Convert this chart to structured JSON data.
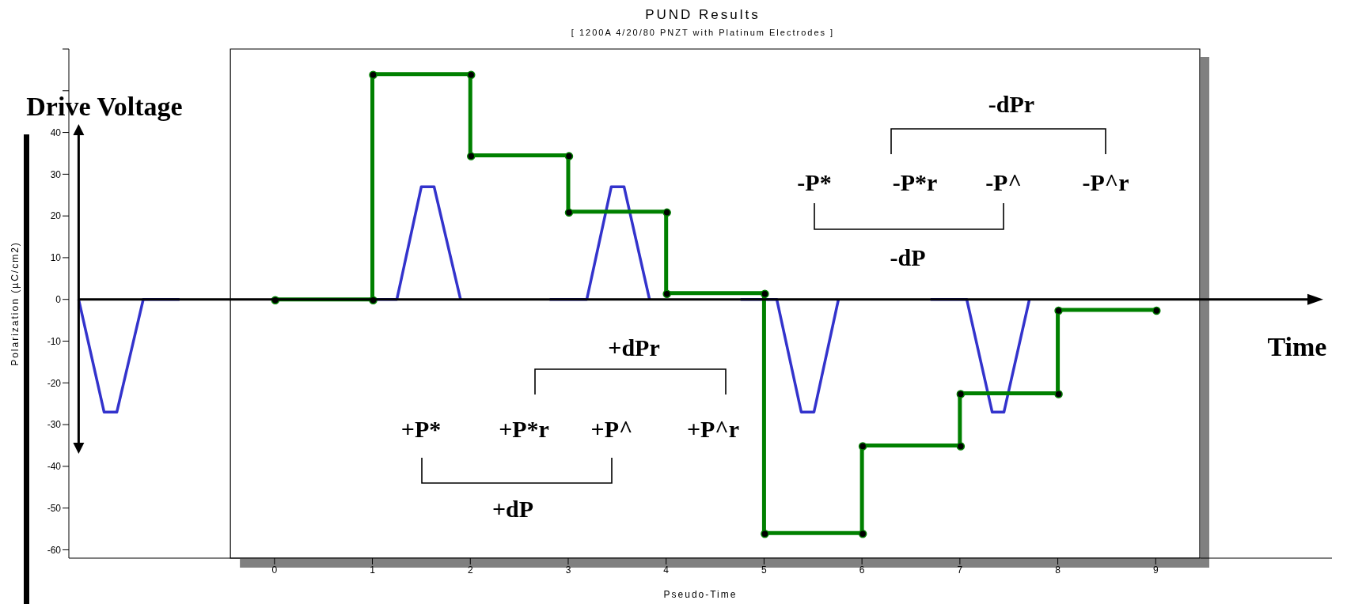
{
  "chart_data": {
    "type": "line",
    "title": "PUND Results",
    "subtitle": "[ 1200A 4/20/80 PNZT with Platinum Electrodes ]",
    "xlabel": "Pseudo-Time",
    "ylabel": "Polarization (µC/cm2)",
    "annotations": [
      "+P*",
      "+P*r",
      "+P^",
      "+P^r",
      "+dPr",
      "+dP",
      "-P*",
      "-P*r",
      "-P^",
      "-P^r",
      "-dPr",
      "-dP",
      "Drive Voltage",
      "Time"
    ],
    "xlim": [
      -2.1,
      10.8
    ],
    "ylim": [
      -62,
      60
    ],
    "xticks": [
      0,
      1,
      2,
      3,
      4,
      5,
      6,
      7,
      8,
      9
    ],
    "yticks": [
      -60,
      -50,
      -40,
      -30,
      -20,
      -10,
      0,
      10,
      20,
      30,
      40,
      {
        "value": 50,
        "label": null
      },
      {
        "value": 60,
        "label": null
      }
    ],
    "series": [
      {
        "color": "#3333cc",
        "marker": "none",
        "x": [
          -2.0,
          -1.74,
          -1.61,
          -1.34,
          -0.97,
          -0.9,
          0.86,
          1.25,
          1.5,
          1.63,
          1.9,
          2.3,
          2.81,
          3.19,
          3.44,
          3.57,
          3.83,
          4.3,
          4.76,
          5.13,
          5.38,
          5.51,
          5.76,
          6.2,
          6.7,
          7.07,
          7.33,
          7.45,
          7.71
        ],
        "values": [
          0,
          -27,
          -27,
          0,
          0,
          null,
          0,
          0,
          27,
          27,
          0,
          null,
          0,
          0,
          27,
          27,
          0,
          null,
          0,
          0,
          -27,
          -27,
          0,
          null,
          0,
          0,
          -27,
          -27,
          0
        ]
      },
      {
        "color": "#008000",
        "marker": "circle",
        "x": [
          0,
          1,
          1,
          2,
          2,
          3,
          3,
          4,
          4,
          5,
          5,
          6,
          6,
          7,
          7,
          8,
          8,
          9
        ],
        "values": [
          0,
          0,
          54,
          54,
          34.5,
          34.5,
          21,
          21,
          1.5,
          1.5,
          -56,
          -56,
          -35,
          -35,
          -22.5,
          -22.5,
          -2.5,
          -2.5
        ]
      }
    ]
  }
}
